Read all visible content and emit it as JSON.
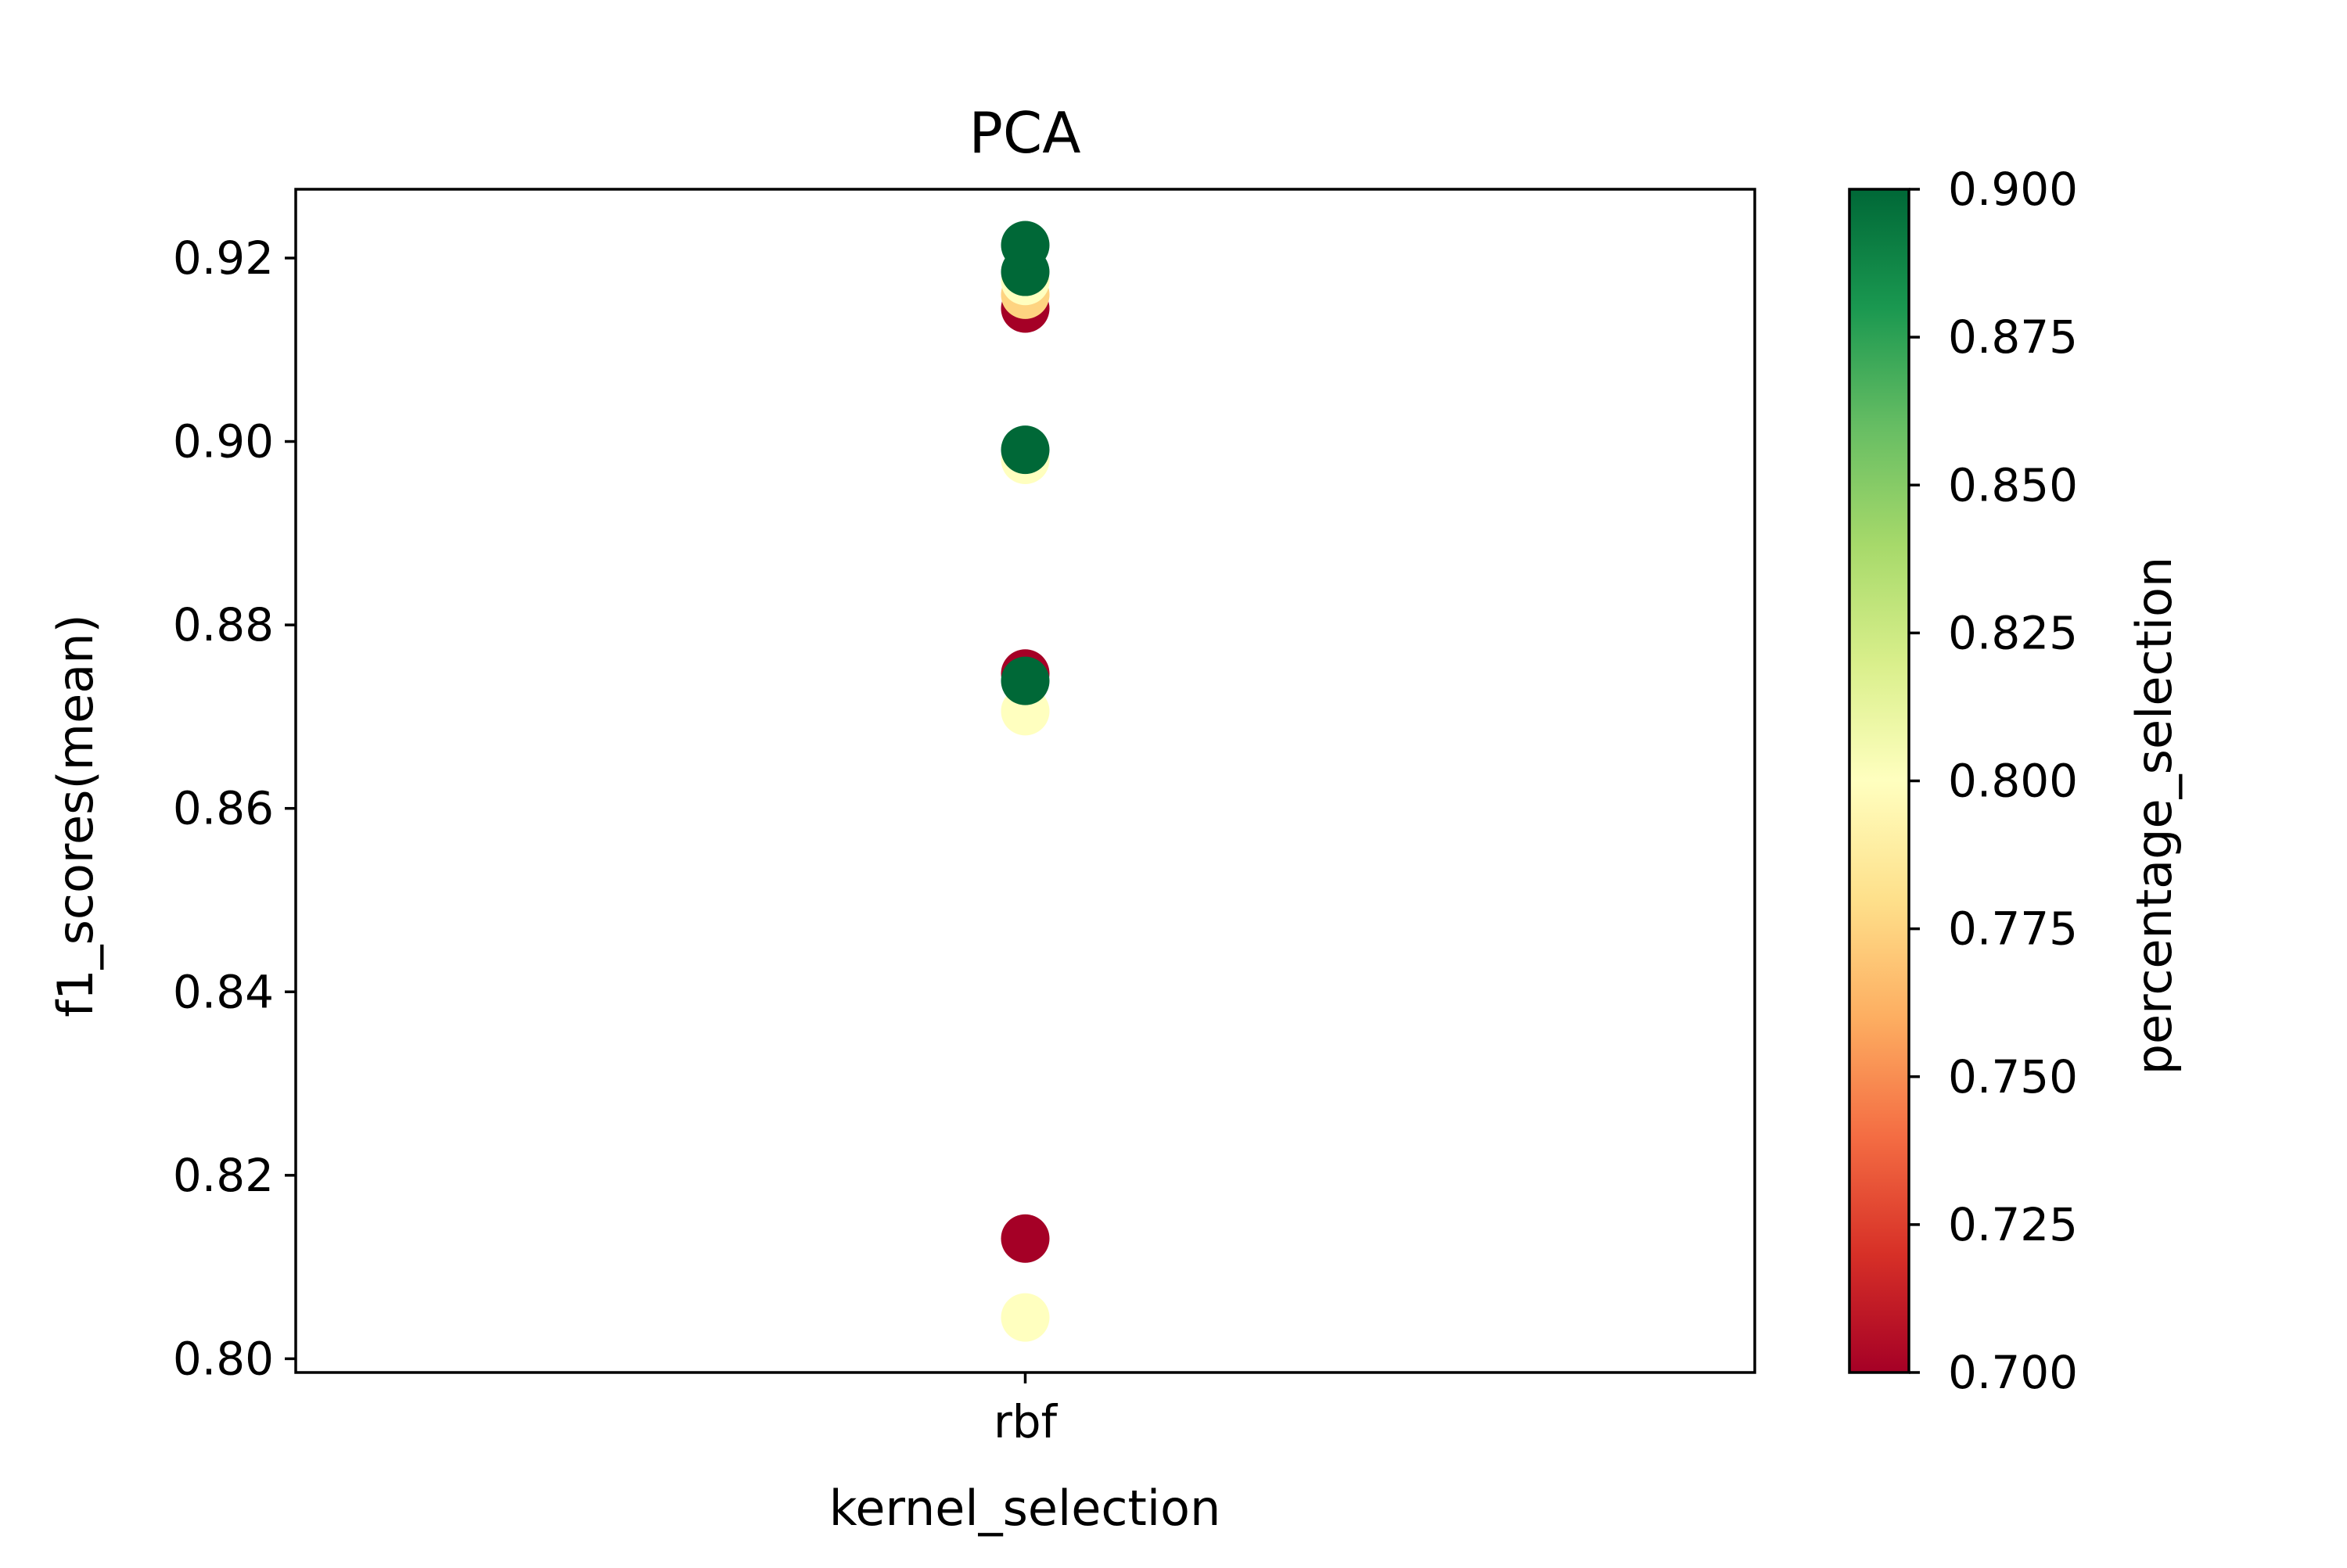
{
  "chart_data": {
    "type": "scatter",
    "title": "PCA",
    "xlabel": "kernel_selection",
    "ylabel": "f1_scores(mean)",
    "categories": [
      "rbf"
    ],
    "ylim": [
      0.7985,
      0.9275
    ],
    "yticks": [
      "0.80",
      "0.82",
      "0.84",
      "0.86",
      "0.88",
      "0.90",
      "0.92"
    ],
    "grid": false,
    "colorbar": {
      "label": "percentage_selection",
      "range": [
        0.7,
        0.9
      ],
      "ticks": [
        "0.700",
        "0.725",
        "0.750",
        "0.775",
        "0.800",
        "0.825",
        "0.850",
        "0.875",
        "0.900"
      ],
      "colormap": "RdYlGn",
      "stops": [
        "#a50026",
        "#d73027",
        "#f46d43",
        "#fdae61",
        "#fee08b",
        "#ffffbf",
        "#d9ef8b",
        "#a6d96a",
        "#66bd63",
        "#1a9850",
        "#006837"
      ]
    },
    "points": [
      {
        "x": "rbf",
        "y": 0.8045,
        "c": 0.8
      },
      {
        "x": "rbf",
        "y": 0.8131,
        "c": 0.7
      },
      {
        "x": "rbf",
        "y": 0.8706,
        "c": 0.8
      },
      {
        "x": "rbf",
        "y": 0.8747,
        "c": 0.7
      },
      {
        "x": "rbf",
        "y": 0.8739,
        "c": 0.9
      },
      {
        "x": "rbf",
        "y": 0.898,
        "c": 0.8
      },
      {
        "x": "rbf",
        "y": 0.8991,
        "c": 0.9
      },
      {
        "x": "rbf",
        "y": 0.9145,
        "c": 0.7
      },
      {
        "x": "rbf",
        "y": 0.916,
        "c": 0.775
      },
      {
        "x": "rbf",
        "y": 0.9175,
        "c": 0.8
      },
      {
        "x": "rbf",
        "y": 0.9185,
        "c": 0.9
      },
      {
        "x": "rbf",
        "y": 0.9214,
        "c": 0.9
      }
    ]
  }
}
